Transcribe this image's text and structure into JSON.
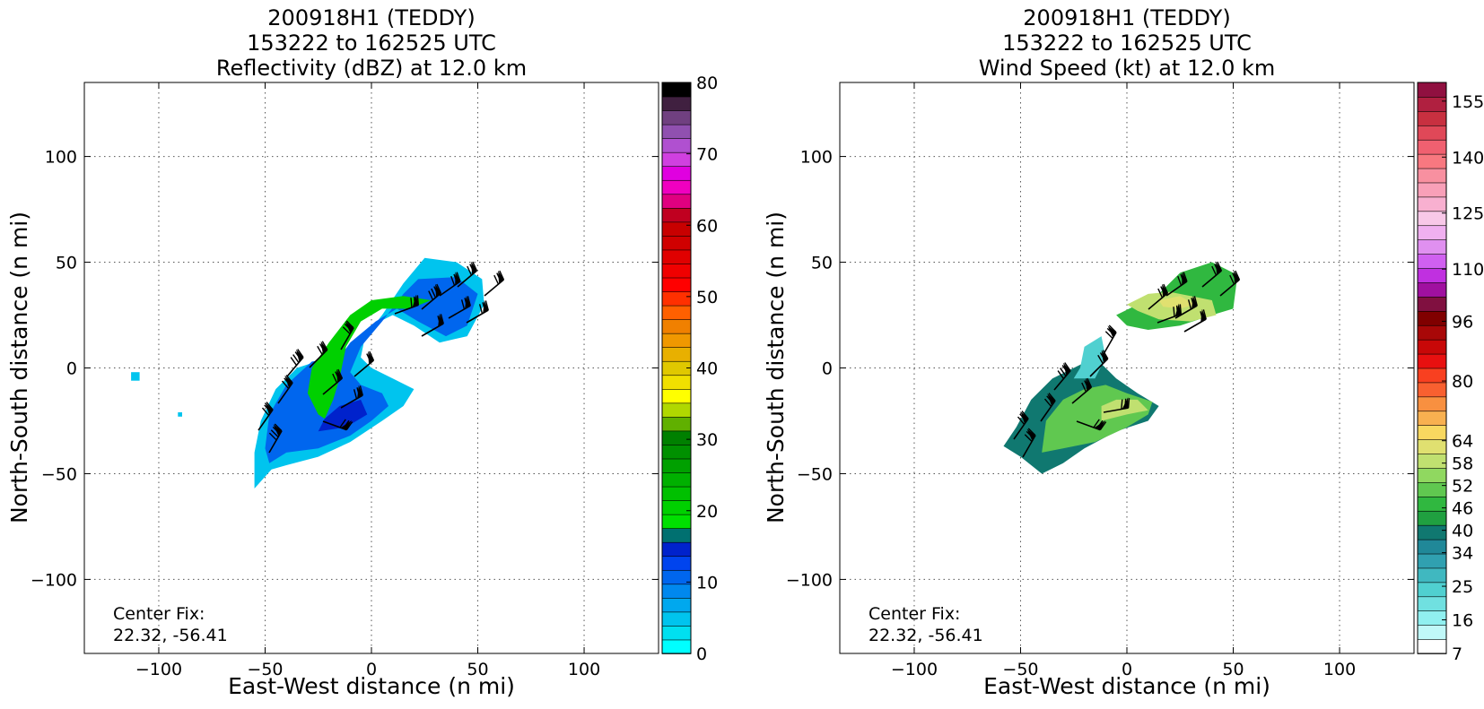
{
  "panels": [
    {
      "title_lines": [
        "200918H1 (TEDDY)",
        "153222 to 162525 UTC",
        "Reflectivity (dBZ) at 12.0 km"
      ],
      "center_fix_label": "Center Fix:",
      "center_fix_value": "22.32, -56.41",
      "colorbar_ticks": [
        "0",
        "10",
        "20",
        "30",
        "40",
        "50",
        "60",
        "70",
        "80"
      ]
    },
    {
      "title_lines": [
        "200918H1 (TEDDY)",
        "153222 to 162525 UTC",
        "Wind Speed (kt) at 12.0 km"
      ],
      "center_fix_label": "Center Fix:",
      "center_fix_value": "22.32, -56.41",
      "colorbar_ticks": [
        "7",
        "16",
        "25",
        "34",
        "40",
        "46",
        "52",
        "58",
        "64",
        "80",
        "96",
        "110",
        "125",
        "140",
        "155"
      ]
    }
  ],
  "chart_data": [
    {
      "type": "heatmap",
      "title": "200918H1 (TEDDY) 153222 to 162525 UTC Reflectivity (dBZ) at 12.0 km",
      "xlabel": "East-West distance (n mi)",
      "ylabel": "North-South distance (n mi)",
      "xlim": [
        -135,
        135
      ],
      "ylim": [
        -135,
        135
      ],
      "xticks": [
        -100,
        -50,
        0,
        50,
        100
      ],
      "yticks": [
        -100,
        -50,
        0,
        50,
        100
      ],
      "xtick_labels": [
        "−100",
        "−50",
        "0",
        "50",
        "100"
      ],
      "ytick_labels": [
        "−100",
        "−50",
        "0",
        "50",
        "100"
      ],
      "grid": true,
      "colorbar": {
        "label": "dBZ",
        "min": 0,
        "max": 80,
        "ticks": [
          0,
          10,
          20,
          30,
          40,
          50,
          60,
          70,
          80
        ]
      },
      "colors": [
        "#00ffff",
        "#00e0f0",
        "#00c4ee",
        "#00a8ee",
        "#0088ee",
        "#0066ee",
        "#0044ee",
        "#0022cc",
        "#007070",
        "#00e000",
        "#00d000",
        "#00c000",
        "#00b000",
        "#00a000",
        "#009000",
        "#008000",
        "#60b000",
        "#b0d800",
        "#ffff00",
        "#f0e000",
        "#e0c800",
        "#e8b000",
        "#f09800",
        "#f08000",
        "#ff6000",
        "#ff3000",
        "#ff0000",
        "#f00000",
        "#e00000",
        "#d00000",
        "#c80000",
        "#c00020",
        "#e00080",
        "#f000c0",
        "#e000e0",
        "#d040e0",
        "#b050d0",
        "#9050b0",
        "#704080",
        "#402040",
        "#000000"
      ],
      "echo_regions": [
        {
          "level_dbz": 5,
          "polygon": [
            [
              -55,
              -57
            ],
            [
              -47,
              -48
            ],
            [
              -40,
              -46
            ],
            [
              -25,
              -42
            ],
            [
              -10,
              -35
            ],
            [
              5,
              -25
            ],
            [
              15,
              -18
            ],
            [
              20,
              -10
            ],
            [
              10,
              -5
            ],
            [
              0,
              0
            ],
            [
              -5,
              5
            ],
            [
              -3,
              15
            ],
            [
              5,
              25
            ],
            [
              15,
              40
            ],
            [
              25,
              52
            ],
            [
              40,
              50
            ],
            [
              52,
              42
            ],
            [
              53,
              30
            ],
            [
              45,
              15
            ],
            [
              32,
              12
            ],
            [
              20,
              20
            ],
            [
              10,
              25
            ],
            [
              0,
              20
            ],
            [
              -8,
              10
            ],
            [
              -10,
              5
            ],
            [
              -20,
              5
            ],
            [
              -35,
              0
            ],
            [
              -45,
              -10
            ],
            [
              -52,
              -25
            ],
            [
              -55,
              -40
            ]
          ]
        },
        {
          "level_dbz": 10,
          "polygon": [
            [
              -48,
              -45
            ],
            [
              -40,
              -40
            ],
            [
              -25,
              -38
            ],
            [
              -10,
              -32
            ],
            [
              0,
              -25
            ],
            [
              8,
              -18
            ],
            [
              5,
              -12
            ],
            [
              -5,
              -8
            ],
            [
              -10,
              -2
            ],
            [
              -5,
              10
            ],
            [
              5,
              22
            ],
            [
              15,
              35
            ],
            [
              22,
              42
            ],
            [
              40,
              43
            ],
            [
              50,
              35
            ],
            [
              45,
              20
            ],
            [
              35,
              15
            ],
            [
              22,
              22
            ],
            [
              12,
              28
            ],
            [
              2,
              22
            ],
            [
              -10,
              12
            ],
            [
              -15,
              5
            ],
            [
              -28,
              3
            ],
            [
              -40,
              -8
            ],
            [
              -48,
              -22
            ],
            [
              -50,
              -38
            ]
          ]
        },
        {
          "level_dbz": 15,
          "polygon": [
            [
              -25,
              -30
            ],
            [
              -12,
              -28
            ],
            [
              -2,
              -22
            ],
            [
              -5,
              -15
            ],
            [
              -15,
              -18
            ],
            [
              -22,
              -24
            ]
          ]
        },
        {
          "level_dbz": 20,
          "polygon": [
            [
              -25,
              -22
            ],
            [
              -30,
              -12
            ],
            [
              -28,
              0
            ],
            [
              -20,
              12
            ],
            [
              -10,
              25
            ],
            [
              0,
              32
            ],
            [
              15,
              34
            ],
            [
              28,
              32
            ],
            [
              18,
              28
            ],
            [
              5,
              28
            ],
            [
              -5,
              22
            ],
            [
              -12,
              10
            ],
            [
              -15,
              -5
            ],
            [
              -18,
              -15
            ],
            [
              -22,
              -24
            ]
          ]
        },
        {
          "level_dbz": 5,
          "polygon": [
            [
              -113,
              -2
            ],
            [
              -109,
              -2
            ],
            [
              -109,
              -6
            ],
            [
              -113,
              -6
            ]
          ]
        },
        {
          "level_dbz": 5,
          "polygon": [
            [
              -91,
              -21
            ],
            [
              -89,
              -21
            ],
            [
              -89,
              -23
            ],
            [
              -91,
              -23
            ]
          ]
        }
      ]
    },
    {
      "type": "heatmap",
      "title": "200918H1 (TEDDY) 153222 to 162525 UTC Wind Speed (kt) at 12.0 km",
      "xlabel": "East-West distance (n mi)",
      "ylabel": "North-South distance (n mi)",
      "xlim": [
        -135,
        135
      ],
      "ylim": [
        -135,
        135
      ],
      "xticks": [
        -100,
        -50,
        0,
        50,
        100
      ],
      "yticks": [
        -100,
        -50,
        0,
        50,
        100
      ],
      "xtick_labels": [
        "−100",
        "−50",
        "0",
        "50",
        "100"
      ],
      "ytick_labels": [
        "−100",
        "−50",
        "0",
        "50",
        "100"
      ],
      "grid": true,
      "colorbar": {
        "label": "kt",
        "min": 7,
        "max": 160,
        "ticks": [
          7,
          16,
          25,
          34,
          40,
          46,
          52,
          58,
          64,
          80,
          96,
          110,
          125,
          140,
          155
        ]
      },
      "colors": [
        "#ffffff",
        "#c0f8f8",
        "#90f0f0",
        "#70e0e0",
        "#50d0d0",
        "#40b8c0",
        "#30a0b0",
        "#208898",
        "#107870",
        "#20a040",
        "#30b840",
        "#60c850",
        "#90d860",
        "#c0e070",
        "#e0e070",
        "#f8d860",
        "#f8b050",
        "#f89040",
        "#f86030",
        "#f84020",
        "#e81010",
        "#c80808",
        "#a80808",
        "#800000",
        "#801040",
        "#a010a0",
        "#c030e0",
        "#d060f0",
        "#e090f0",
        "#f0b0f0",
        "#f8c8e8",
        "#f8b0d0",
        "#f8a0b8",
        "#f890a0",
        "#f87880",
        "#f06070",
        "#e04858",
        "#c83040",
        "#b02040",
        "#901040"
      ],
      "wind_regions": [
        {
          "level_kt": 40,
          "polygon": [
            [
              -58,
              -37
            ],
            [
              -50,
              -42
            ],
            [
              -40,
              -50
            ],
            [
              -30,
              -45
            ],
            [
              -20,
              -38
            ],
            [
              -5,
              -30
            ],
            [
              10,
              -25
            ],
            [
              15,
              -18
            ],
            [
              5,
              -12
            ],
            [
              -5,
              -5
            ],
            [
              -15,
              5
            ],
            [
              -25,
              0
            ],
            [
              -35,
              -5
            ],
            [
              -45,
              -15
            ],
            [
              -52,
              -28
            ]
          ]
        },
        {
          "level_kt": 52,
          "polygon": [
            [
              -40,
              -40
            ],
            [
              -30,
              -38
            ],
            [
              -15,
              -35
            ],
            [
              0,
              -28
            ],
            [
              10,
              -22
            ],
            [
              12,
              -16
            ],
            [
              0,
              -12
            ],
            [
              -10,
              -8
            ],
            [
              -20,
              -10
            ],
            [
              -30,
              -15
            ],
            [
              -38,
              -25
            ]
          ]
        },
        {
          "level_kt": 58,
          "polygon": [
            [
              -12,
              -25
            ],
            [
              0,
              -22
            ],
            [
              10,
              -20
            ],
            [
              5,
              -15
            ],
            [
              -5,
              -15
            ],
            [
              -12,
              -18
            ]
          ]
        },
        {
          "level_kt": 25,
          "polygon": [
            [
              -25,
              -5
            ],
            [
              -15,
              -5
            ],
            [
              -10,
              5
            ],
            [
              -12,
              15
            ],
            [
              -20,
              10
            ],
            [
              -22,
              0
            ]
          ]
        },
        {
          "level_kt": 46,
          "polygon": [
            [
              -5,
              25
            ],
            [
              5,
              30
            ],
            [
              15,
              35
            ],
            [
              25,
              45
            ],
            [
              40,
              50
            ],
            [
              52,
              44
            ],
            [
              50,
              28
            ],
            [
              40,
              25
            ],
            [
              25,
              20
            ],
            [
              10,
              18
            ],
            [
              0,
              20
            ]
          ]
        },
        {
          "level_kt": 58,
          "polygon": [
            [
              0,
              30
            ],
            [
              10,
              35
            ],
            [
              20,
              36
            ],
            [
              30,
              34
            ],
            [
              40,
              32
            ],
            [
              42,
              25
            ],
            [
              30,
              22
            ],
            [
              15,
              23
            ],
            [
              5,
              27
            ]
          ]
        },
        {
          "level_kt": 64,
          "polygon": [
            [
              15,
              32
            ],
            [
              25,
              34
            ],
            [
              32,
              30
            ],
            [
              25,
              28
            ],
            [
              17,
              29
            ]
          ]
        }
      ]
    }
  ]
}
